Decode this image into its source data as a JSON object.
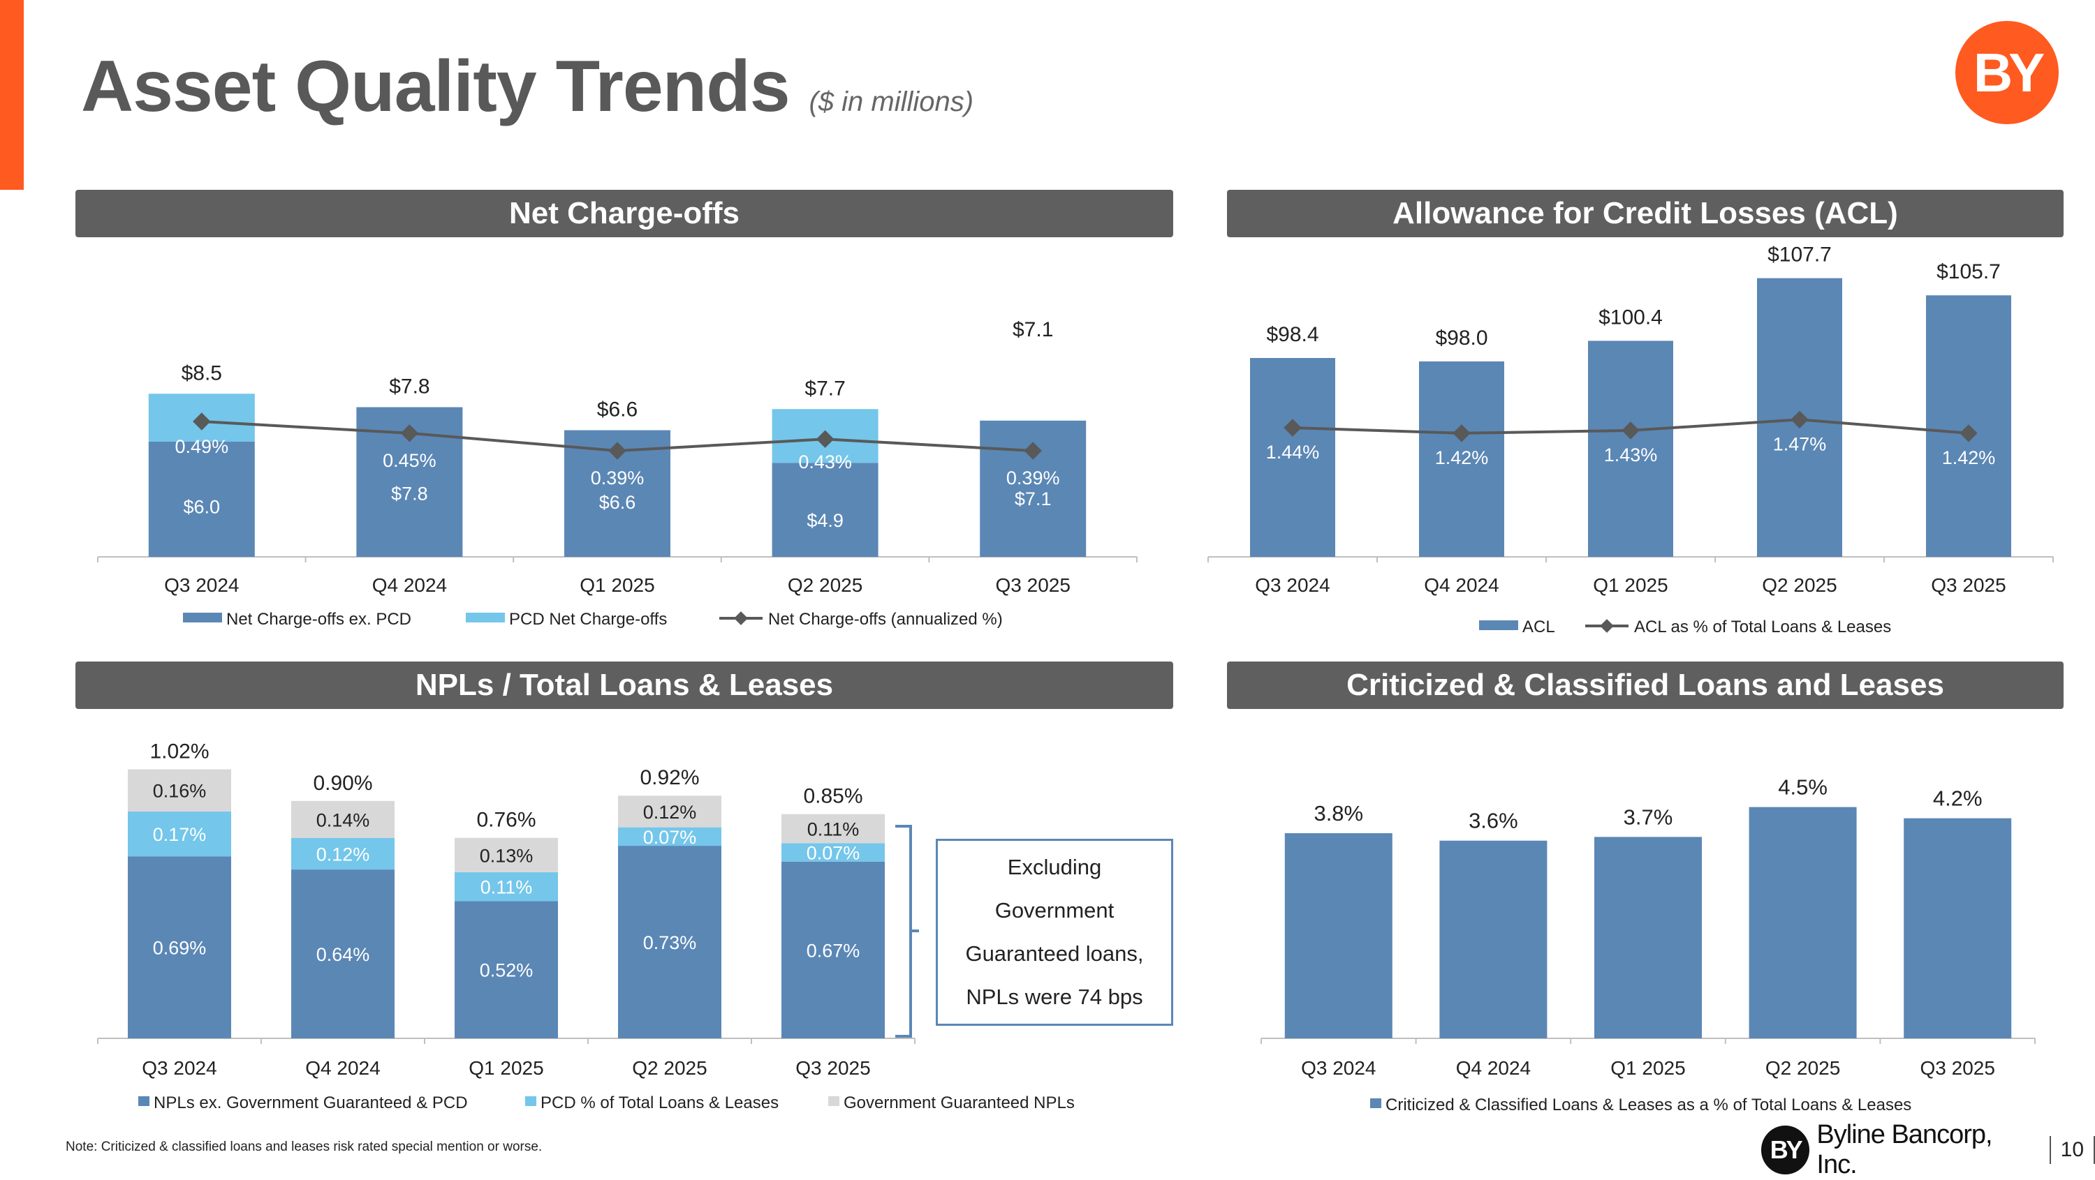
{
  "header": {
    "title": "Asset Quality Trends",
    "unit": "($ in millions)",
    "logo_text": "BY"
  },
  "panels": {
    "net_chargeoffs": "Net Charge-offs",
    "acl": "Allowance for Credit Losses (ACL)",
    "npls": "NPLs / Total Loans & Leases",
    "criticized": "Criticized & Classified Loans and Leases"
  },
  "callout": {
    "lines": [
      "Excluding",
      "Government",
      "Guaranteed loans,",
      "NPLs were 74 bps"
    ]
  },
  "note": "Note: Criticized & classified loans and leases risk rated special mention or worse.",
  "footer": {
    "logo_text": "BY",
    "company": "Byline Bancorp, Inc.",
    "page": "10"
  },
  "colors": {
    "dark_blue": "#5b87b5",
    "light_blue": "#74c6ea",
    "gray_bar": "#d8d8d8",
    "line": "#595959",
    "accent": "#ff5a1f"
  },
  "chart_data": [
    {
      "id": "net_chargeoffs",
      "type": "bar",
      "stacked": true,
      "categories": [
        "Q3 2024",
        "Q4 2024",
        "Q1 2025",
        "Q2 2025",
        "Q3 2025"
      ],
      "series": [
        {
          "name": "Net Charge-offs ex. PCD",
          "values": [
            6.0,
            7.8,
            6.6,
            4.9,
            7.1
          ],
          "labels": [
            "$6.0",
            "$7.8",
            "$6.6",
            "$4.9",
            "$7.1"
          ]
        },
        {
          "name": "PCD Net Charge-offs",
          "values": [
            2.5,
            0.0,
            0.0,
            2.8,
            0.0
          ]
        }
      ],
      "totals": [
        "$8.5",
        "$7.8",
        "$6.6",
        "$7.7",
        "$7.1"
      ],
      "line": {
        "name": "Net Charge-offs (annualized %)",
        "values": [
          0.49,
          0.45,
          0.39,
          0.43,
          0.39
        ],
        "labels": [
          "0.49%",
          "0.45%",
          "0.39%",
          "0.43%",
          "0.39%"
        ]
      },
      "legend": [
        "Net Charge-offs ex. PCD",
        "PCD Net Charge-offs",
        "Net Charge-offs (annualized %)"
      ]
    },
    {
      "id": "acl",
      "type": "bar",
      "categories": [
        "Q3 2024",
        "Q4 2024",
        "Q1 2025",
        "Q2 2025",
        "Q3 2025"
      ],
      "series": [
        {
          "name": "ACL",
          "values": [
            98.4,
            98.0,
            100.4,
            107.7,
            105.7
          ],
          "labels": [
            "$98.4",
            "$98.0",
            "$100.4",
            "$107.7",
            "$105.7"
          ]
        }
      ],
      "line": {
        "name": "ACL as % of Total Loans & Leases",
        "values": [
          1.44,
          1.42,
          1.43,
          1.47,
          1.42
        ],
        "labels": [
          "1.44%",
          "1.42%",
          "1.43%",
          "1.47%",
          "1.42%"
        ]
      },
      "legend": [
        "ACL",
        "ACL as % of Total Loans & Leases"
      ]
    },
    {
      "id": "npls",
      "type": "bar",
      "stacked": true,
      "categories": [
        "Q3 2024",
        "Q4 2024",
        "Q1 2025",
        "Q2 2025",
        "Q3 2025"
      ],
      "series": [
        {
          "name": "NPLs ex. Government Guaranteed & PCD",
          "values": [
            0.69,
            0.64,
            0.52,
            0.73,
            0.67
          ],
          "labels": [
            "0.69%",
            "0.64%",
            "0.52%",
            "0.73%",
            "0.67%"
          ]
        },
        {
          "name": "PCD % of Total Loans & Leases",
          "values": [
            0.17,
            0.12,
            0.11,
            0.07,
            0.07
          ],
          "labels": [
            "0.17%",
            "0.12%",
            "0.11%",
            "0.07%",
            "0.07%"
          ]
        },
        {
          "name": "Government Guaranteed NPLs",
          "values": [
            0.16,
            0.14,
            0.13,
            0.12,
            0.11
          ],
          "labels": [
            "0.16%",
            "0.14%",
            "0.13%",
            "0.12%",
            "0.11%"
          ]
        }
      ],
      "totals": [
        "1.02%",
        "0.90%",
        "0.76%",
        "0.92%",
        "0.85%"
      ],
      "legend": [
        "NPLs ex. Government Guaranteed & PCD",
        "PCD % of Total Loans & Leases",
        "Government Guaranteed NPLs"
      ]
    },
    {
      "id": "criticized",
      "type": "bar",
      "categories": [
        "Q3 2024",
        "Q4 2024",
        "Q1 2025",
        "Q2 2025",
        "Q3 2025"
      ],
      "series": [
        {
          "name": "Criticized & Classified Loans & Leases as a % of Total Loans & Leases",
          "values": [
            3.8,
            3.6,
            3.7,
            4.5,
            4.2
          ],
          "labels": [
            "3.8%",
            "3.6%",
            "3.7%",
            "4.5%",
            "4.2%"
          ]
        }
      ],
      "legend": [
        "Criticized & Classified Loans & Leases as a % of Total Loans & Leases"
      ]
    }
  ]
}
